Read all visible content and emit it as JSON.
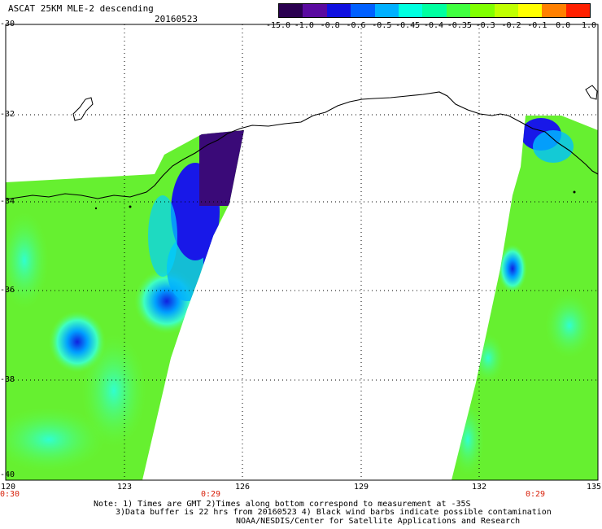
{
  "title": "ASCAT 25KM MLE-2 descending",
  "date": "20160523",
  "colorbar": {
    "labels": [
      "-15.0",
      "-1.0",
      "-0.8",
      "-0.6",
      "-0.5",
      "-0.45",
      "-0.4",
      "-0.35",
      "-0.3",
      "-0.2",
      "-0.1",
      "0.0",
      "1.0"
    ],
    "colors": [
      "#2a0050",
      "#5a0aa0",
      "#1010e0",
      "#0060ff",
      "#00b0ff",
      "#00ffe0",
      "#00ffa0",
      "#40ff40",
      "#80ff00",
      "#c0ff00",
      "#ffff00",
      "#ff8000",
      "#ff2000"
    ]
  },
  "axes": {
    "lat_labels": [
      "-30",
      "-32",
      "-34",
      "-36",
      "-38",
      "-40"
    ],
    "lon_labels": [
      "120",
      "123",
      "126",
      "129",
      "132",
      "135"
    ]
  },
  "time_labels": [
    "0:30",
    "0:29",
    "0:29"
  ],
  "notes": {
    "line1": "Note: 1) Times are GMT 2)Times along bottom correspond to measurement at -35S",
    "line2": "3)Data buffer is 22 hrs from 20160523 4) Black wind barbs indicate possible contamination",
    "line3": "NOAA/NESDIS/Center for Satellite Applications and Research"
  }
}
